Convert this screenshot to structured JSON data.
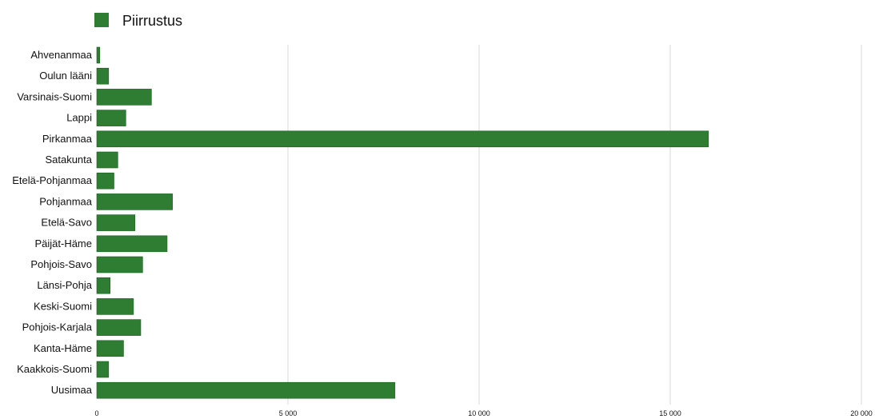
{
  "chart_data": {
    "type": "bar",
    "orientation": "horizontal",
    "categories": [
      "Ahvenanmaa",
      "Oulun lääni",
      "Varsinais-Suomi",
      "Lappi",
      "Pirkanmaa",
      "Satakunta",
      "Etelä-Pohjanmaa",
      "Pohjanmaa",
      "Etelä-Savo",
      "Päijät-Häme",
      "Pohjois-Savo",
      "Länsi-Pohja",
      "Keski-Suomi",
      "Pohjois-Karjala",
      "Kanta-Häme",
      "Kaakkois-Suomi",
      "Uusimaa"
    ],
    "series": [
      {
        "name": "Piirrustus",
        "color": "#2e7d32",
        "values": [
          80,
          310,
          1430,
          760,
          16000,
          550,
          450,
          1980,
          1000,
          1840,
          1200,
          350,
          960,
          1150,
          700,
          310,
          7800
        ]
      }
    ],
    "xlim": [
      0,
      20000
    ],
    "xticks": [
      0,
      5000,
      10000,
      15000,
      20000
    ],
    "xtick_labels": [
      "0",
      "5 000",
      "10 000",
      "15 000",
      "20 000"
    ],
    "grid": "vertical",
    "legend": "top-left",
    "title": "",
    "xlabel": "",
    "ylabel": ""
  }
}
